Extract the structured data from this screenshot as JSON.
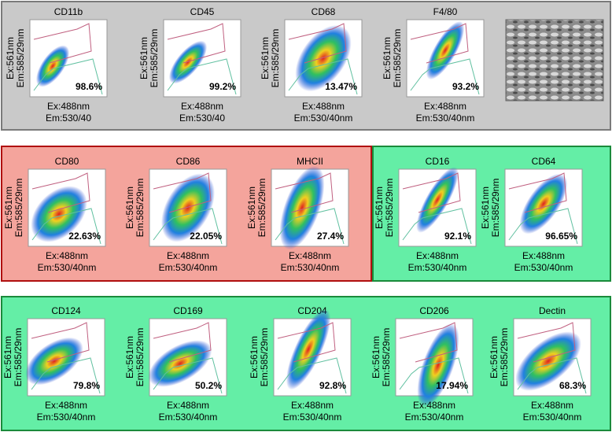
{
  "groups": [
    {
      "panels": [
        {
          "title": "CD11b",
          "y_label": [
            "Ex:561nm",
            "Em:585/29nm"
          ],
          "x_label": [
            "Ex:488nm",
            "Em:530/40"
          ],
          "percent": "98.6%"
        },
        {
          "title": "CD45",
          "y_label": [
            "Ex:561nm",
            "Em:585/29nm"
          ],
          "x_label": [
            "Ex:488nm",
            "Em:530/40"
          ],
          "percent": "99.2%"
        },
        {
          "title": "CD68",
          "y_label": [
            "Ex:561nm",
            "Em:585/29nm"
          ],
          "x_label": [
            "Ex:488nm",
            "Em:530/40nm"
          ],
          "percent": "13.47%"
        },
        {
          "title": "F4/80",
          "y_label": [
            "Ex:561nm",
            "Em:585/29nm"
          ],
          "x_label": [
            "Ex:488nm",
            "Em:530/40nm"
          ],
          "percent": "93.2%"
        }
      ]
    },
    {
      "panels": [
        {
          "title": "CD80",
          "y_label": [
            "Ex:561nm",
            "Em:585/29nm"
          ],
          "x_label": [
            "Ex:488nm",
            "Em:530/40nm"
          ],
          "percent": "22.63%"
        },
        {
          "title": "CD86",
          "y_label": [
            "Ex:561nm",
            "Em:585/29nm"
          ],
          "x_label": [
            "Ex:488nm",
            "Em:530/40nm"
          ],
          "percent": "22.05%"
        },
        {
          "title": "MHCII",
          "y_label": [
            "Ex:561nm",
            "Em:585/29nm"
          ],
          "x_label": [
            "Ex:488nm",
            "Em:530/40nm"
          ],
          "percent": "27.4%"
        }
      ]
    },
    {
      "panels": [
        {
          "title": "CD16",
          "y_label": [
            "Ex:561nm",
            "Em:585/29nm"
          ],
          "x_label": [
            "Ex:488nm",
            "Em:530/40nm"
          ],
          "percent": "92.1%"
        },
        {
          "title": "CD64",
          "y_label": [
            "Ex:561nm",
            "Em:585/29nm"
          ],
          "x_label": [
            "Ex:488nm",
            "Em:530/40nm"
          ],
          "percent": "96.65%"
        }
      ]
    },
    {
      "panels": [
        {
          "title": "CD124",
          "y_label": [
            "Ex:561nm",
            "Em:585/29nm"
          ],
          "x_label": [
            "Ex:488nm",
            "Em:530/40nm"
          ],
          "percent": "79.8%"
        },
        {
          "title": "CD169",
          "y_label": [
            "Ex:561nm",
            "Em:585/29nm"
          ],
          "x_label": [
            "Ex:488nm",
            "Em:530/40nm"
          ],
          "percent": "50.2%"
        },
        {
          "title": "CD204",
          "y_label": [
            "Ex:561nm",
            "Em:585/29nm"
          ],
          "x_label": [
            "Ex:488nm",
            "Em:530/40nm"
          ],
          "percent": "92.8%"
        },
        {
          "title": "CD206",
          "y_label": [
            "Ex:561nm",
            "Em:585/29nm"
          ],
          "x_label": [
            "Ex:488nm",
            "Em:530/40nm"
          ],
          "percent": "17.94%"
        },
        {
          "title": "Dectin",
          "y_label": [
            "Ex:561nm",
            "Em:585/29nm"
          ],
          "x_label": [
            "Ex:488nm",
            "Em:530/40nm"
          ],
          "percent": "68.3%"
        }
      ]
    }
  ]
}
